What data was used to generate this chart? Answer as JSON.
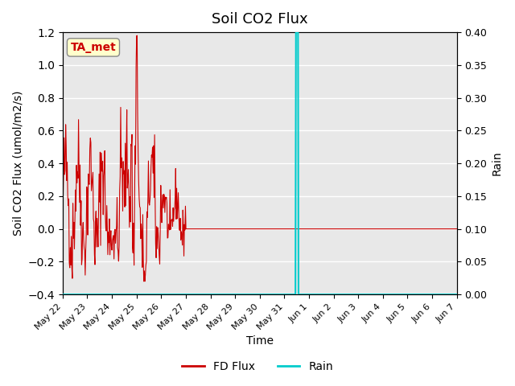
{
  "title": "Soil CO2 Flux",
  "xlabel": "Time",
  "ylabel_left": "Soil CO2 Flux (umol/m2/s)",
  "ylabel_right": "Rain",
  "ylim_left": [
    -0.4,
    1.2
  ],
  "ylim_right": [
    0.0,
    0.4
  ],
  "yticks_left": [
    -0.4,
    -0.2,
    0.0,
    0.2,
    0.4,
    0.6,
    0.8,
    1.0,
    1.2
  ],
  "yticks_right": [
    0.0,
    0.05,
    0.1,
    0.15,
    0.2,
    0.25,
    0.3,
    0.35,
    0.4
  ],
  "background_color": "#e8e8e8",
  "annotation_text": "TA_met",
  "annotation_color": "#cc0000",
  "annotation_bg": "#ffffcc",
  "fd_flux_color": "#cc0000",
  "rain_color": "#00cccc",
  "legend_fd_color": "#cc0000",
  "legend_rain_color": "#00cccc",
  "x_tick_positions": [
    0,
    1,
    2,
    3,
    4,
    5,
    6,
    7,
    8,
    9,
    10,
    11,
    12,
    13,
    14,
    15,
    16
  ],
  "x_tick_labels": [
    "May 22",
    "May 23",
    "May 24",
    "May 25",
    "May 26",
    "May 27",
    "May 28",
    "May 29",
    "May 30",
    "May 31",
    "Jun 1",
    "Jun 2",
    "Jun 3",
    "Jun 4",
    "Jun 5",
    "Jun 6",
    "Jun 7"
  ]
}
